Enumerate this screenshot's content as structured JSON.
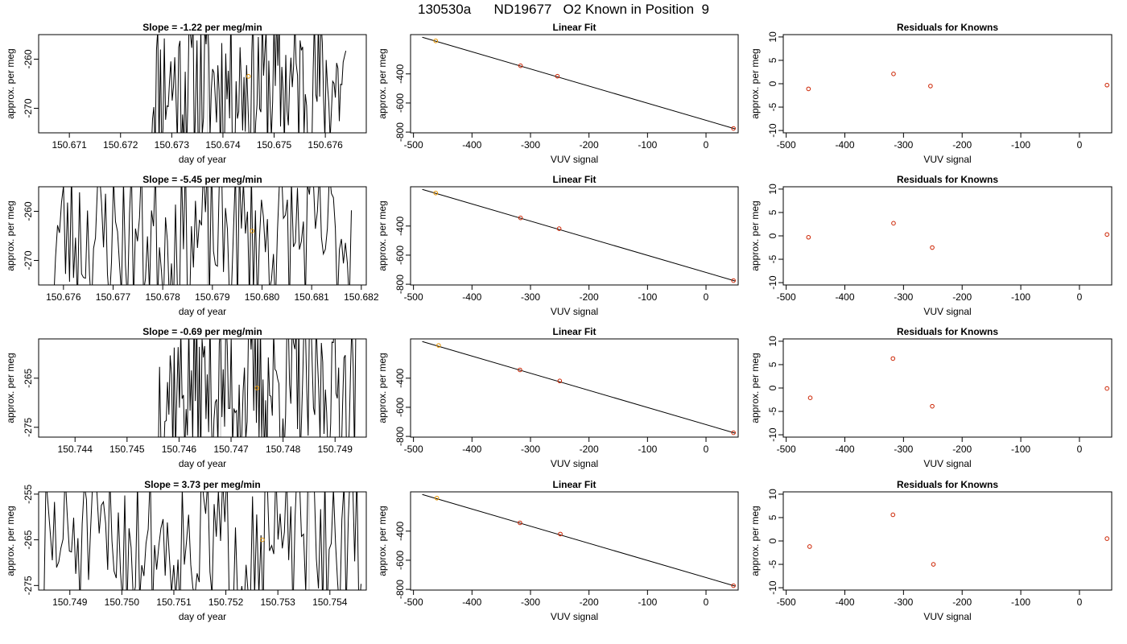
{
  "figure": {
    "title": "130530a      ND19677   O2 Known in Position  9"
  },
  "colors": {
    "line": "#000000",
    "marker_orange": "#e69500",
    "marker_red": "#cc2200",
    "axis": "#000000",
    "gridline_grey": "#bebebe"
  },
  "chart_data": [
    {
      "type": "line",
      "title": "Slope =  -1.22  per meg/min",
      "xlabel": "day of year",
      "ylabel": "approx. per meg",
      "xlim": [
        150.6704,
        150.6768
      ],
      "ylim": [
        -275,
        -255
      ],
      "xticks": [
        150.671,
        150.672,
        150.673,
        150.674,
        150.675,
        150.676
      ],
      "xtick_labels": [
        "150.671",
        "150.672",
        "150.673",
        "150.674",
        "150.675",
        "150.676"
      ],
      "yticks": [
        -260,
        -270
      ],
      "ytick_labels": [
        "-260",
        "-270"
      ],
      "trace_start": 150.6726,
      "trace_end": 150.6764,
      "trace_seed": 11,
      "vline": 150.6737,
      "mean_point": {
        "x": 150.6745,
        "y": -263.5
      }
    },
    {
      "type": "scatter",
      "title": "Linear Fit",
      "xlabel": "VUV signal",
      "ylabel": "approx. per meg",
      "xlim": [
        -505,
        55
      ],
      "ylim": [
        -805,
        -130
      ],
      "xticks": [
        -500,
        -400,
        -300,
        -200,
        -100,
        0
      ],
      "xtick_labels": [
        "-500",
        "-400",
        "-300",
        "-200",
        "-100",
        "0"
      ],
      "yticks": [
        -400,
        -600,
        -800
      ],
      "ytick_labels": [
        "-400",
        "-600",
        "-800"
      ],
      "points": [
        {
          "x": -462,
          "y": -173
        },
        {
          "x": -317,
          "y": -344
        },
        {
          "x": -254,
          "y": -416
        },
        {
          "x": 47,
          "y": -775
        }
      ],
      "highlight_index": 0,
      "fit_line": {
        "x": [
          -485,
          50
        ],
        "y": [
          -148,
          -778
        ]
      }
    },
    {
      "type": "scatter",
      "title": "Residuals for Knowns",
      "xlabel": "VUV signal",
      "ylabel": "approx. per meg",
      "xlim": [
        -505,
        55
      ],
      "ylim": [
        -10.5,
        10.5
      ],
      "xticks": [
        -500,
        -400,
        -300,
        -200,
        -100,
        0
      ],
      "xtick_labels": [
        "-500",
        "-400",
        "-300",
        "-200",
        "-100",
        "0"
      ],
      "yticks": [
        10,
        5,
        0,
        -5,
        -10
      ],
      "ytick_labels": [
        "10",
        "5",
        "0",
        "-5",
        "-10"
      ],
      "points": [
        {
          "x": -462,
          "y": -1.1
        },
        {
          "x": -317,
          "y": 2.1
        },
        {
          "x": -254,
          "y": -0.5
        },
        {
          "x": 47,
          "y": -0.3
        }
      ]
    },
    {
      "type": "line",
      "title": "Slope =  -5.45  per meg/min",
      "xlabel": "day of year",
      "ylabel": "approx. per meg",
      "xlim": [
        150.6755,
        150.6821
      ],
      "ylim": [
        -275,
        -255
      ],
      "xticks": [
        150.676,
        150.677,
        150.678,
        150.679,
        150.68,
        150.681,
        150.682
      ],
      "xtick_labels": [
        "150.676",
        "150.677",
        "150.678",
        "150.679",
        "150.680",
        "150.681",
        "150.682"
      ],
      "yticks": [
        -260,
        -270
      ],
      "ytick_labels": [
        "-260",
        "-270"
      ],
      "trace_start": 150.6758,
      "trace_end": 150.6818,
      "trace_seed": 23,
      "vline": 150.6789,
      "mean_point": {
        "x": 150.6798,
        "y": -264
      }
    },
    {
      "type": "scatter",
      "title": "Linear Fit",
      "xlabel": "VUV signal",
      "ylabel": "approx. per meg",
      "xlim": [
        -505,
        55
      ],
      "ylim": [
        -805,
        -130
      ],
      "xticks": [
        -500,
        -400,
        -300,
        -200,
        -100,
        0
      ],
      "xtick_labels": [
        "-500",
        "-400",
        "-300",
        "-200",
        "-100",
        "0"
      ],
      "yticks": [
        -400,
        -600,
        -800
      ],
      "ytick_labels": [
        "-400",
        "-600",
        "-800"
      ],
      "points": [
        {
          "x": -462,
          "y": -173
        },
        {
          "x": -317,
          "y": -344
        },
        {
          "x": -251,
          "y": -418
        },
        {
          "x": 47,
          "y": -775
        }
      ],
      "highlight_index": 0,
      "fit_line": {
        "x": [
          -485,
          50
        ],
        "y": [
          -148,
          -778
        ]
      }
    },
    {
      "type": "scatter",
      "title": "Residuals for Knowns",
      "xlabel": "VUV signal",
      "ylabel": "approx. per meg",
      "xlim": [
        -505,
        55
      ],
      "ylim": [
        -10.5,
        10.5
      ],
      "xticks": [
        -500,
        -400,
        -300,
        -200,
        -100,
        0
      ],
      "xtick_labels": [
        "-500",
        "-400",
        "-300",
        "-200",
        "-100",
        "0"
      ],
      "yticks": [
        10,
        5,
        0,
        -5,
        -10
      ],
      "ytick_labels": [
        "10",
        "5",
        "0",
        "-5",
        "-10"
      ],
      "points": [
        {
          "x": -462,
          "y": -0.3
        },
        {
          "x": -317,
          "y": 2.7
        },
        {
          "x": -251,
          "y": -2.5
        },
        {
          "x": 47,
          "y": 0.3
        }
      ]
    },
    {
      "type": "line",
      "title": "Slope =  -0.69  per meg/min",
      "xlabel": "day of year",
      "ylabel": "approx. per meg",
      "xlim": [
        150.7433,
        150.7496
      ],
      "ylim": [
        -277,
        -257
      ],
      "xticks": [
        150.744,
        150.745,
        150.746,
        150.747,
        150.748,
        150.749
      ],
      "xtick_labels": [
        "150.744",
        "150.745",
        "150.746",
        "150.747",
        "150.748",
        "150.749"
      ],
      "yticks": [
        -265,
        -275
      ],
      "ytick_labels": [
        "-265",
        "-275"
      ],
      "trace_start": 150.7456,
      "trace_end": 150.7494,
      "trace_seed": 37,
      "vline": 150.7468,
      "mean_point": {
        "x": 150.7475,
        "y": -267
      }
    },
    {
      "type": "scatter",
      "title": "Linear Fit",
      "xlabel": "VUV signal",
      "ylabel": "approx. per meg",
      "xlim": [
        -505,
        55
      ],
      "ylim": [
        -805,
        -130
      ],
      "xticks": [
        -500,
        -400,
        -300,
        -200,
        -100,
        0
      ],
      "xtick_labels": [
        "-500",
        "-400",
        "-300",
        "-200",
        "-100",
        "0"
      ],
      "yticks": [
        -400,
        -600,
        -800
      ],
      "ytick_labels": [
        "-400",
        "-600",
        "-800"
      ],
      "points": [
        {
          "x": -457,
          "y": -175
        },
        {
          "x": -318,
          "y": -343
        },
        {
          "x": -250,
          "y": -419
        },
        {
          "x": 47,
          "y": -775
        }
      ],
      "highlight_index": 0,
      "fit_line": {
        "x": [
          -485,
          50
        ],
        "y": [
          -148,
          -778
        ]
      }
    },
    {
      "type": "scatter",
      "title": "Residuals for Knowns",
      "xlabel": "VUV signal",
      "ylabel": "approx. per meg",
      "xlim": [
        -505,
        55
      ],
      "ylim": [
        -10.5,
        10.5
      ],
      "xticks": [
        -500,
        -400,
        -300,
        -200,
        -100,
        0
      ],
      "xtick_labels": [
        "-500",
        "-400",
        "-300",
        "-200",
        "-100",
        "0"
      ],
      "yticks": [
        10,
        5,
        0,
        -5,
        -10
      ],
      "ytick_labels": [
        "10",
        "5",
        "0",
        "-5",
        "-10"
      ],
      "points": [
        {
          "x": -459,
          "y": -2.1
        },
        {
          "x": -318,
          "y": 6.3
        },
        {
          "x": -251,
          "y": -3.9
        },
        {
          "x": 47,
          "y": -0.1
        }
      ]
    },
    {
      "type": "line",
      "title": "Slope =  3.73  per meg/min",
      "xlabel": "day of year",
      "ylabel": "approx. per meg",
      "xlim": [
        150.7484,
        150.7547
      ],
      "ylim": [
        -276,
        -254.5
      ],
      "xticks": [
        150.749,
        150.75,
        150.751,
        150.752,
        150.753,
        150.754
      ],
      "xtick_labels": [
        "150.749",
        "150.750",
        "150.751",
        "150.752",
        "150.753",
        "150.754"
      ],
      "yticks": [
        -255,
        -265,
        -275
      ],
      "ytick_labels": [
        "-255",
        "-265",
        "-275"
      ],
      "trace_start": 150.7485,
      "trace_end": 150.7546,
      "trace_seed": 51,
      "vline": 150.7536,
      "mean_point": {
        "x": 150.7527,
        "y": -265
      }
    },
    {
      "type": "scatter",
      "title": "Linear Fit",
      "xlabel": "VUV signal",
      "ylabel": "approx. per meg",
      "xlim": [
        -505,
        55
      ],
      "ylim": [
        -805,
        -130
      ],
      "xticks": [
        -500,
        -400,
        -300,
        -200,
        -100,
        0
      ],
      "xtick_labels": [
        "-500",
        "-400",
        "-300",
        "-200",
        "-100",
        "0"
      ],
      "yticks": [
        -400,
        -600,
        -800
      ],
      "ytick_labels": [
        "-400",
        "-600",
        "-800"
      ],
      "points": [
        {
          "x": -460,
          "y": -173
        },
        {
          "x": -318,
          "y": -343
        },
        {
          "x": -249,
          "y": -420
        },
        {
          "x": 47,
          "y": -775
        }
      ],
      "highlight_index": 0,
      "fit_line": {
        "x": [
          -485,
          50
        ],
        "y": [
          -148,
          -778
        ]
      }
    },
    {
      "type": "scatter",
      "title": "Residuals for Knowns",
      "xlabel": "VUV signal",
      "ylabel": "approx. per meg",
      "xlim": [
        -505,
        55
      ],
      "ylim": [
        -10.5,
        10.5
      ],
      "xticks": [
        -500,
        -400,
        -300,
        -200,
        -100,
        0
      ],
      "xtick_labels": [
        "-500",
        "-400",
        "-300",
        "-200",
        "-100",
        "0"
      ],
      "yticks": [
        10,
        5,
        0,
        -5,
        -10
      ],
      "ytick_labels": [
        "10",
        "5",
        "0",
        "-5",
        "-10"
      ],
      "points": [
        {
          "x": -460,
          "y": -1.2
        },
        {
          "x": -318,
          "y": 5.6
        },
        {
          "x": -249,
          "y": -5.0
        },
        {
          "x": 47,
          "y": 0.5
        }
      ]
    }
  ]
}
